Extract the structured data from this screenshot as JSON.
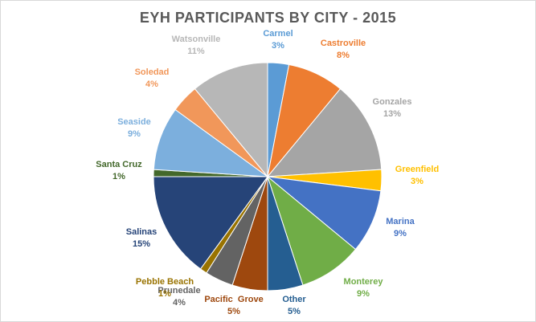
{
  "chart_data": {
    "type": "pie",
    "title": "EYH PARTICIPANTS BY CITY - 2015",
    "slices": [
      {
        "label": "Carmel",
        "pct_label": "3%",
        "value": 3,
        "color": "#5b9bd5"
      },
      {
        "label": "Castroville",
        "pct_label": "8%",
        "value": 8,
        "color": "#ed7d31"
      },
      {
        "label": "Gonzales",
        "pct_label": "13%",
        "value": 13,
        "color": "#a5a5a5"
      },
      {
        "label": "Greenfield",
        "pct_label": "3%",
        "value": 3,
        "color": "#ffc000"
      },
      {
        "label": "Marina",
        "pct_label": "9%",
        "value": 9,
        "color": "#4472c4"
      },
      {
        "label": "Monterey",
        "pct_label": "9%",
        "value": 9,
        "color": "#70ad47"
      },
      {
        "label": "Other",
        "pct_label": "5%",
        "value": 5,
        "color": "#255e91"
      },
      {
        "label": "Pacific  Grove",
        "pct_label": "5%",
        "value": 5,
        "color": "#9e480e"
      },
      {
        "label": "Prunedale",
        "pct_label": "4%",
        "value": 4,
        "color": "#636363"
      },
      {
        "label": "Pebble Beach",
        "pct_label": "1%",
        "value": 1,
        "color": "#997300"
      },
      {
        "label": "Salinas",
        "pct_label": "15%",
        "value": 15,
        "color": "#264478"
      },
      {
        "label": "Santa Cruz",
        "pct_label": "1%",
        "value": 1,
        "color": "#43682b"
      },
      {
        "label": "Seaside",
        "pct_label": "9%",
        "value": 9,
        "color": "#7cafdd"
      },
      {
        "label": "Soledad",
        "pct_label": "4%",
        "value": 4,
        "color": "#f1975a"
      },
      {
        "label": "Watsonville",
        "pct_label": "11%",
        "value": 11,
        "color": "#b7b7b7"
      }
    ]
  }
}
